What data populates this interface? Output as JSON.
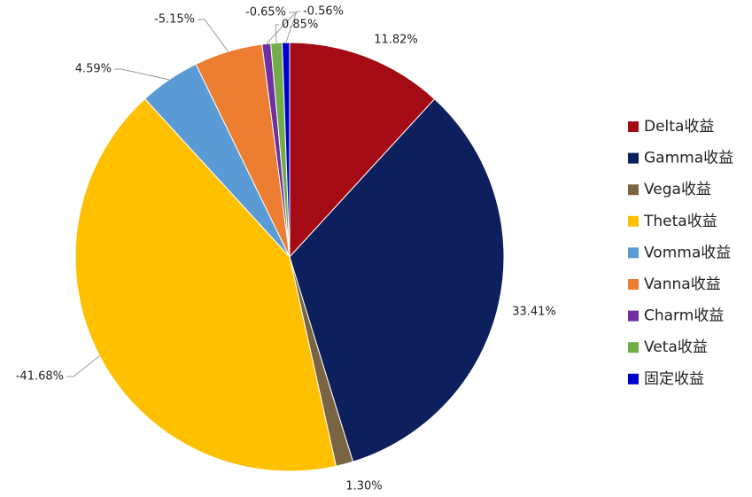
{
  "chart_data": {
    "type": "pie",
    "categories": [
      "Delta收益",
      "Gamma收益",
      "Vega收益",
      "Theta收益",
      "Vomma收益",
      "Vanna收益",
      "Charm收益",
      "Veta收益",
      "固定收益"
    ],
    "values": [
      11.82,
      33.41,
      1.3,
      -41.68,
      4.59,
      -5.15,
      -0.65,
      0.85,
      -0.56
    ],
    "value_labels": [
      "11.82%",
      "33.41%",
      "1.30%",
      "-41.68%",
      "4.59%",
      "-5.15%",
      "-0.65%",
      "0.85%",
      "-0.56%"
    ],
    "colors": [
      "#a50b15",
      "#0d1f5c",
      "#7a6543",
      "#ffc000",
      "#5b9bd5",
      "#ed7d31",
      "#7030a0",
      "#70ad47",
      "#0000cc"
    ],
    "legend": "right"
  }
}
